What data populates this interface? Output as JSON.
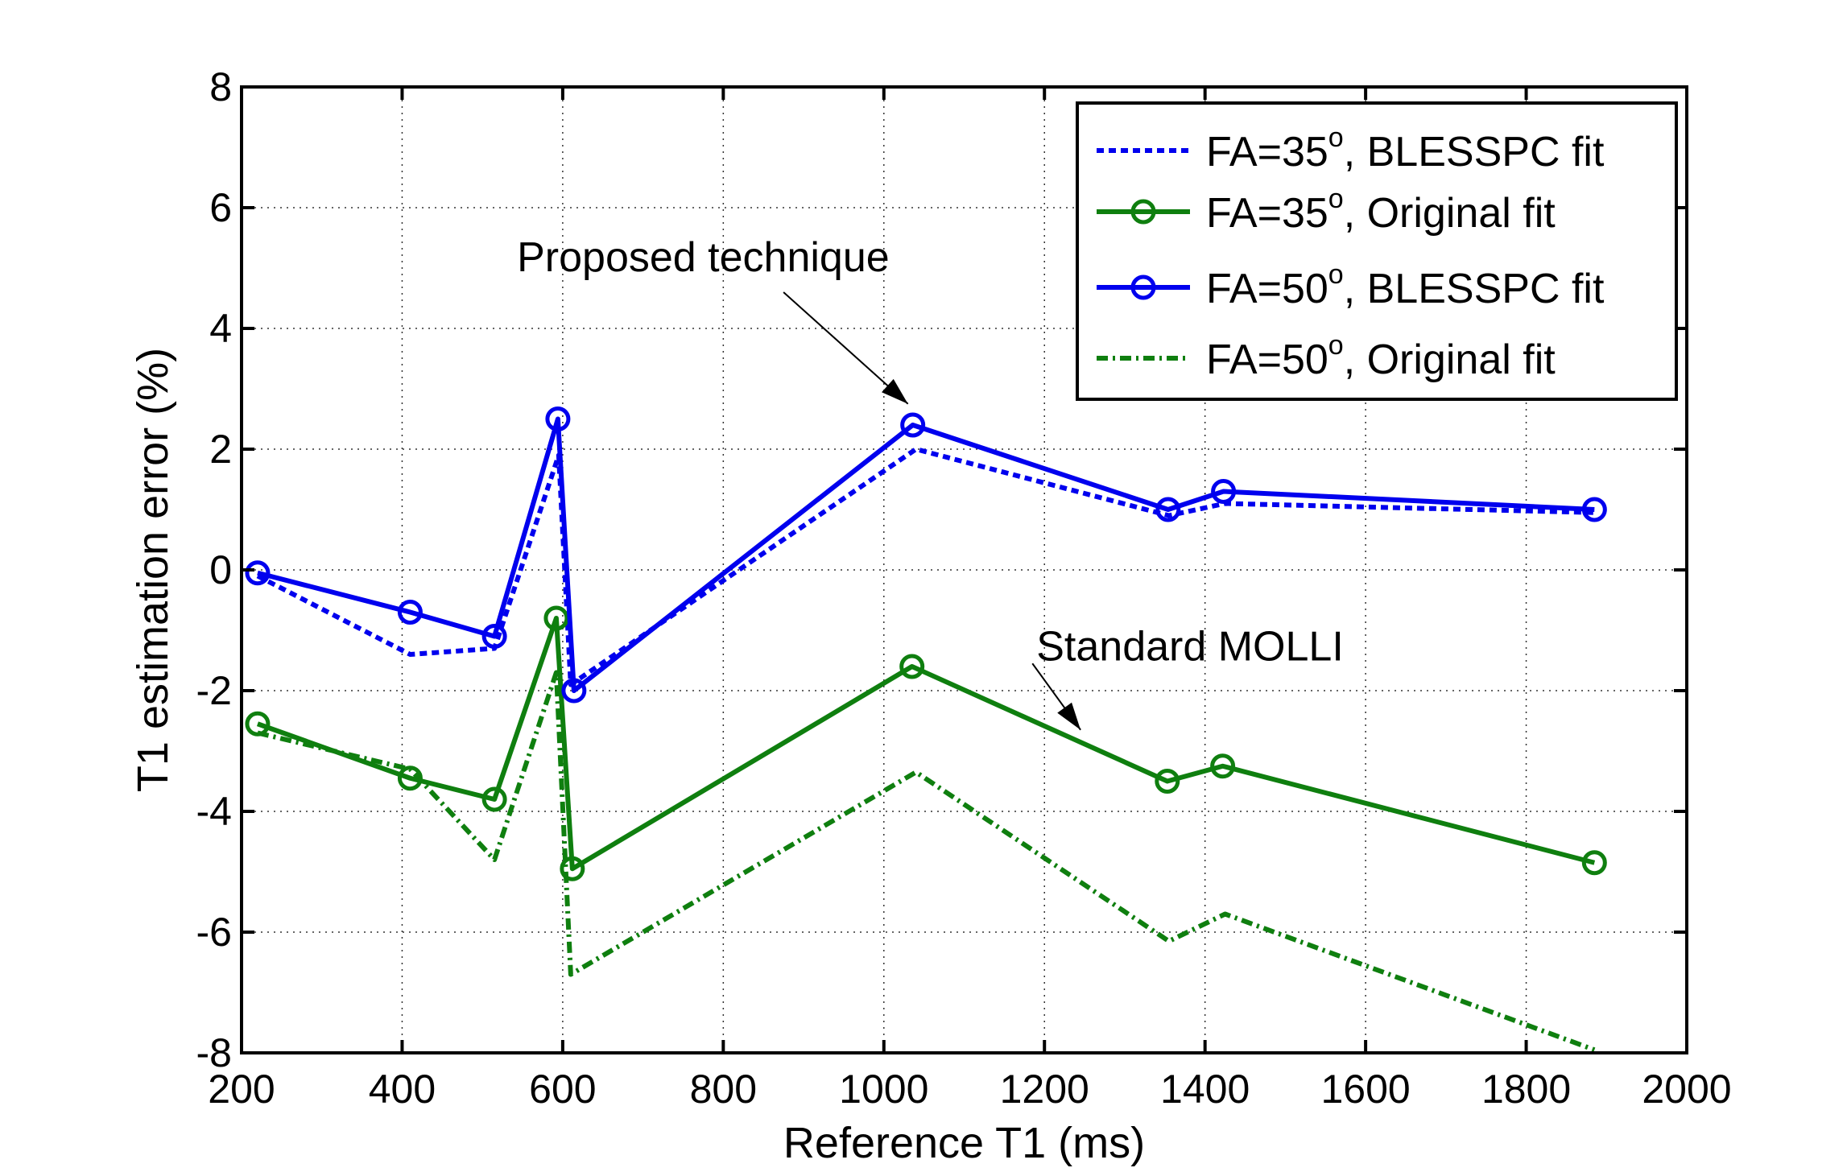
{
  "chart_data": {
    "type": "line",
    "xlabel": "Reference T1 (ms)",
    "ylabel": "T1 estimation error (%)",
    "xlim": [
      200,
      2000
    ],
    "ylim": [
      -8,
      8
    ],
    "xticks": [
      200,
      400,
      600,
      800,
      1000,
      1200,
      1400,
      1600,
      1800,
      2000
    ],
    "yticks": [
      -8,
      -6,
      -4,
      -2,
      0,
      2,
      4,
      6,
      8
    ],
    "grid": true,
    "legend_position": "top-right",
    "colors": {
      "blue": "#0000ee",
      "green": "#0f7f0f"
    },
    "series": [
      {
        "name": "FA=35o, BLESSPC fit",
        "label_main": "FA=35",
        "label_sup": "o",
        "label_rest": ", BLESSPC fit",
        "color": "#0000ee",
        "style": "dotted",
        "marker": "none",
        "x": [
          220,
          410,
          515,
          595,
          610,
          1040,
          1355,
          1425,
          1885
        ],
        "y": [
          -0.1,
          -1.4,
          -1.3,
          1.9,
          -1.9,
          2.0,
          0.9,
          1.1,
          0.95
        ]
      },
      {
        "name": "FA=35o, Original fit",
        "label_main": "FA=35",
        "label_sup": "o",
        "label_rest": ", Original fit",
        "color": "#0f7f0f",
        "style": "solid",
        "marker": "circle",
        "x": [
          220,
          410,
          515,
          592,
          612,
          1035,
          1353,
          1422,
          1885
        ],
        "y": [
          -2.55,
          -3.45,
          -3.8,
          -0.8,
          -4.95,
          -1.6,
          -3.5,
          -3.25,
          -4.85
        ]
      },
      {
        "name": "FA=50o, BLESSPC fit",
        "label_main": "FA=50",
        "label_sup": "o",
        "label_rest": ", BLESSPC fit",
        "color": "#0000ee",
        "style": "solid",
        "marker": "circle",
        "x": [
          220,
          410,
          515,
          594,
          614,
          1036,
          1354,
          1423,
          1885
        ],
        "y": [
          -0.05,
          -0.7,
          -1.1,
          2.5,
          -2.0,
          2.4,
          1.0,
          1.3,
          1.0
        ]
      },
      {
        "name": "FA=50o, Original fit",
        "label_main": "FA=50",
        "label_sup": "o",
        "label_rest": ", Original fit",
        "color": "#0f7f0f",
        "style": "dashdot",
        "marker": "none",
        "x": [
          220,
          410,
          515,
          592,
          610,
          1040,
          1355,
          1425,
          1885
        ],
        "y": [
          -2.7,
          -3.3,
          -4.8,
          -1.7,
          -6.7,
          -3.35,
          -6.15,
          -5.7,
          -7.95
        ]
      }
    ],
    "annotations": [
      {
        "text": "Proposed technique",
        "text_x": 775,
        "text_y": 4.95,
        "arrow_from": [
          875,
          4.6
        ],
        "arrow_to": [
          1030,
          2.75
        ]
      },
      {
        "text": "Standard MOLLI",
        "text_x": 1190,
        "text_y": -1.5,
        "arrow_from": [
          1185,
          -1.55
        ],
        "arrow_to": [
          1245,
          -2.65
        ]
      }
    ]
  }
}
